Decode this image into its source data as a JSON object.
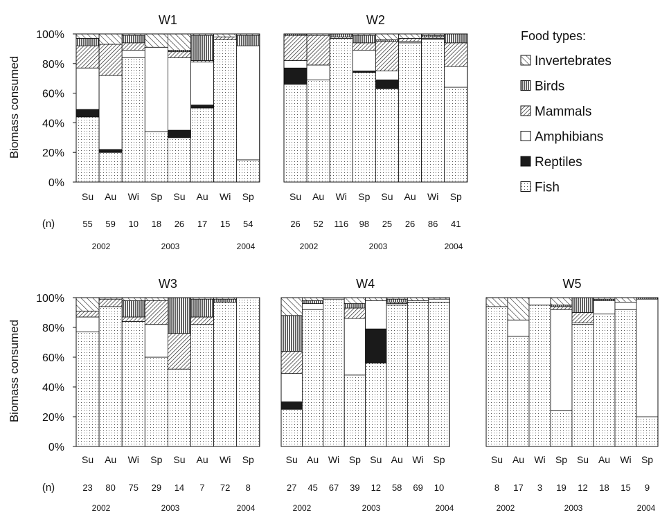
{
  "figure": {
    "ylabel": "Biomass consumed",
    "n_label": "(n)",
    "yticks": [
      "0%",
      "20%",
      "40%",
      "60%",
      "80%",
      "100%"
    ],
    "legend_title": "Food types:",
    "categories": [
      "Fish",
      "Reptiles",
      "Amphibians",
      "Mammals",
      "Birds",
      "Invertebrates"
    ],
    "legend_order": [
      "Invertebrates",
      "Birds",
      "Mammals",
      "Amphibians",
      "Reptiles",
      "Fish"
    ],
    "years": [
      "2002",
      "2003",
      "2004"
    ],
    "series_colors": {
      "Fish": "#ffffff",
      "Reptiles": "#1a1a1a",
      "Amphibians": "#ffffff",
      "Mammals": "#ffffff",
      "Birds": "#ffffff",
      "Invertebrates": "#ffffff"
    },
    "series_patterns": {
      "Fish": "dots",
      "Reptiles": "solid",
      "Amphibians": "blank",
      "Mammals": "diagonal-dense",
      "Birds": "vertical-lines",
      "Invertebrates": "diagonal-sparse"
    }
  },
  "chart_data": [
    {
      "type": "bar",
      "stacked": true,
      "title": "W1",
      "ylim": [
        0,
        100
      ],
      "categories": [
        "Su",
        "Au",
        "Wi",
        "Sp",
        "Su",
        "Au",
        "Wi",
        "Sp"
      ],
      "n": [
        "55",
        "59",
        "10",
        "18",
        "26",
        "17",
        "15",
        "54"
      ],
      "series": [
        {
          "name": "Fish",
          "values": [
            44,
            20,
            84,
            34,
            30,
            50,
            96,
            15
          ]
        },
        {
          "name": "Reptiles",
          "values": [
            5,
            2,
            0,
            0,
            5,
            2,
            0,
            0
          ]
        },
        {
          "name": "Amphibians",
          "values": [
            28,
            50,
            5,
            57,
            49,
            29,
            0,
            77
          ]
        },
        {
          "name": "Mammals",
          "values": [
            15,
            21,
            5,
            0,
            4,
            1,
            2,
            0
          ]
        },
        {
          "name": "Birds",
          "values": [
            5,
            0,
            5,
            0,
            1,
            17,
            0,
            7
          ]
        },
        {
          "name": "Invertebrates",
          "values": [
            3,
            7,
            1,
            9,
            11,
            1,
            2,
            1
          ]
        }
      ]
    },
    {
      "type": "bar",
      "stacked": true,
      "title": "W2",
      "ylim": [
        0,
        100
      ],
      "categories": [
        "Su",
        "Au",
        "Wi",
        "Sp",
        "Su",
        "Au",
        "Wi",
        "Sp"
      ],
      "n": [
        "26",
        "52",
        "116",
        "98",
        "25",
        "26",
        "86",
        "41"
      ],
      "series": [
        {
          "name": "Fish",
          "values": [
            66,
            69,
            97,
            74,
            63,
            94,
            96,
            64
          ]
        },
        {
          "name": "Reptiles",
          "values": [
            11,
            0,
            0,
            1,
            6,
            0,
            0,
            0
          ]
        },
        {
          "name": "Amphibians",
          "values": [
            5,
            10,
            0,
            14,
            6,
            1,
            1,
            14
          ]
        },
        {
          "name": "Mammals",
          "values": [
            17,
            20,
            1,
            5,
            20,
            2,
            1,
            16
          ]
        },
        {
          "name": "Birds",
          "values": [
            1,
            0,
            2,
            5,
            1,
            0,
            1,
            6
          ]
        },
        {
          "name": "Invertebrates",
          "values": [
            0,
            1,
            0,
            1,
            4,
            3,
            1,
            0
          ]
        }
      ]
    },
    {
      "type": "bar",
      "stacked": true,
      "title": "W3",
      "ylim": [
        0,
        100
      ],
      "categories": [
        "Su",
        "Au",
        "Wi",
        "Sp",
        "Su",
        "Au",
        "Wi",
        "Sp"
      ],
      "n": [
        "23",
        "80",
        "75",
        "29",
        "14",
        "7",
        "72",
        "8"
      ],
      "series": [
        {
          "name": "Fish",
          "values": [
            77,
            94,
            84,
            60,
            52,
            82,
            97,
            100
          ]
        },
        {
          "name": "Reptiles",
          "values": [
            0,
            0,
            0,
            0,
            0,
            0,
            0,
            0
          ]
        },
        {
          "name": "Amphibians",
          "values": [
            10,
            0,
            0,
            22,
            0,
            0,
            0,
            0
          ]
        },
        {
          "name": "Mammals",
          "values": [
            4,
            5,
            3,
            16,
            24,
            5,
            0,
            0
          ]
        },
        {
          "name": "Birds",
          "values": [
            0,
            0,
            11,
            0,
            24,
            12,
            2,
            0
          ]
        },
        {
          "name": "Invertebrates",
          "values": [
            9,
            1,
            2,
            2,
            0,
            1,
            1,
            0
          ]
        }
      ]
    },
    {
      "type": "bar",
      "stacked": true,
      "title": "W4",
      "ylim": [
        0,
        100
      ],
      "categories": [
        "Su",
        "Au",
        "Wi",
        "Sp",
        "Su",
        "Au",
        "Wi",
        "Sp"
      ],
      "n": [
        "27",
        "45",
        "67",
        "39",
        "12",
        "58",
        "69",
        "10"
      ],
      "series": [
        {
          "name": "Fish",
          "values": [
            25,
            92,
            99,
            48,
            56,
            95,
            97,
            97
          ]
        },
        {
          "name": "Reptiles",
          "values": [
            5,
            0,
            0,
            0,
            23,
            0,
            0,
            0
          ]
        },
        {
          "name": "Amphibians",
          "values": [
            19,
            4,
            1,
            38,
            19,
            1,
            1,
            2
          ]
        },
        {
          "name": "Mammals",
          "values": [
            15,
            0,
            0,
            7,
            0,
            1,
            0,
            0
          ]
        },
        {
          "name": "Birds",
          "values": [
            24,
            2,
            0,
            3,
            0,
            2,
            0,
            0
          ]
        },
        {
          "name": "Invertebrates",
          "values": [
            12,
            2,
            0,
            4,
            2,
            1,
            2,
            1
          ]
        }
      ]
    },
    {
      "type": "bar",
      "stacked": true,
      "title": "W5",
      "ylim": [
        0,
        100
      ],
      "categories": [
        "Su",
        "Au",
        "Wi",
        "Sp",
        "Su",
        "Au",
        "Wi",
        "Sp"
      ],
      "n": [
        "8",
        "17",
        "3",
        "19",
        "12",
        "18",
        "15",
        "9"
      ],
      "series": [
        {
          "name": "Fish",
          "values": [
            94,
            74,
            95,
            24,
            82,
            89,
            92,
            20
          ]
        },
        {
          "name": "Reptiles",
          "values": [
            0,
            0,
            0,
            0,
            0,
            0,
            0,
            0
          ]
        },
        {
          "name": "Amphibians",
          "values": [
            0,
            11,
            5,
            68,
            1,
            9,
            5,
            79
          ]
        },
        {
          "name": "Mammals",
          "values": [
            0,
            0,
            0,
            2,
            7,
            0,
            0,
            0
          ]
        },
        {
          "name": "Birds",
          "values": [
            0,
            0,
            0,
            1,
            10,
            1,
            0,
            1
          ]
        },
        {
          "name": "Invertebrates",
          "values": [
            6,
            15,
            0,
            5,
            0,
            1,
            3,
            0
          ]
        }
      ]
    }
  ]
}
